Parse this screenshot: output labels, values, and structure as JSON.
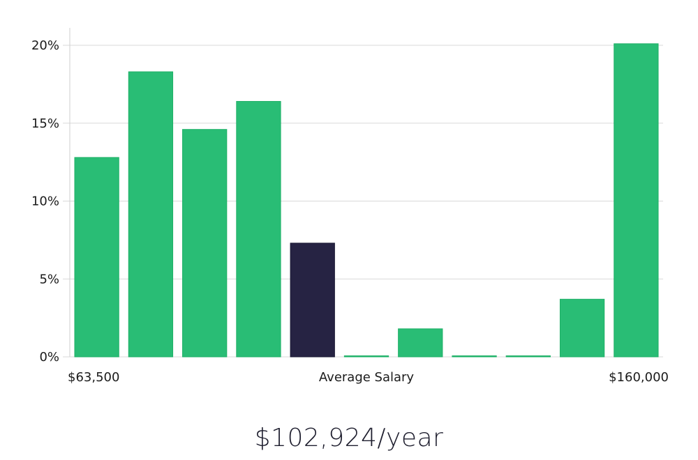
{
  "chart_data": {
    "type": "bar",
    "values": [
      12.8,
      18.3,
      14.6,
      16.4,
      7.3,
      0,
      1.8,
      0,
      0,
      3.7,
      20.1
    ],
    "highlight_index": 4,
    "ylim": [
      0,
      20
    ],
    "yticks": [
      0,
      5,
      10,
      15,
      20
    ],
    "ytick_suffix": "%",
    "x_min_label": "$63,500",
    "x_center_label": "Average Salary",
    "x_max_label": "$160,000",
    "grid": true,
    "colors": {
      "bar": "#29bd75",
      "bar_edge": "#1fb067",
      "highlight": "#262343",
      "grid": "#d9d9d9",
      "axis": "#cfcfcf"
    }
  },
  "summary": {
    "salary_text": "$102,924/year"
  }
}
